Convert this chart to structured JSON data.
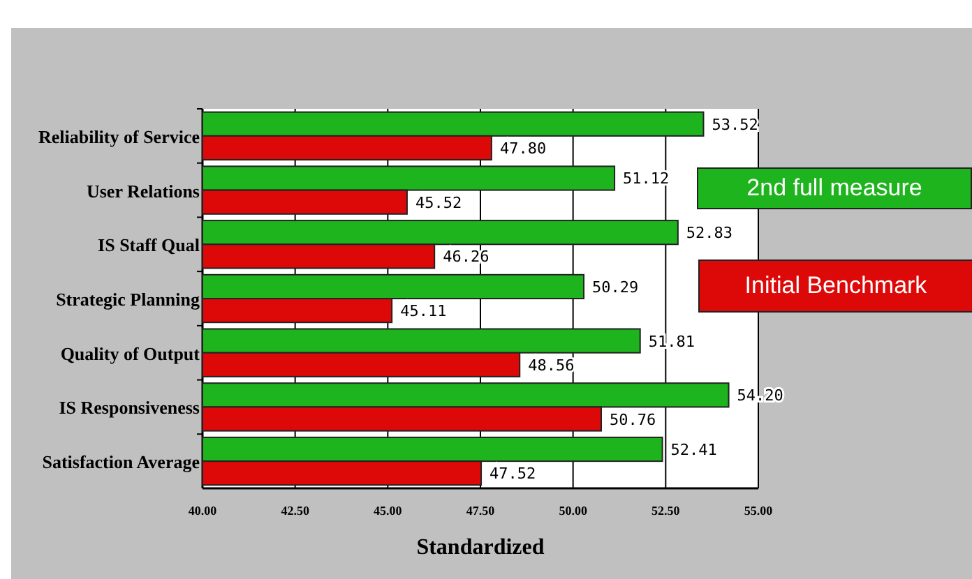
{
  "chart_data": {
    "type": "bar",
    "orientation": "horizontal",
    "xlabel": "Standardized",
    "categories": [
      "Reliability of Service",
      "User Relations",
      "IS Staff Qual",
      "Strategic Planning",
      "Quality of Output",
      "IS Responsiveness",
      "Satisfaction Average"
    ],
    "series": [
      {
        "name": "2nd full measure",
        "color": "#1eb41e",
        "values": [
          53.52,
          51.12,
          52.83,
          50.29,
          51.81,
          54.2,
          52.41
        ],
        "value_labels": [
          "53.52",
          "51.12",
          "52.83",
          "50.29",
          "51.81",
          "54.20",
          "52.41"
        ]
      },
      {
        "name": "Initial Benchmark",
        "color": "#dd0808",
        "values": [
          47.8,
          45.52,
          46.26,
          45.11,
          48.56,
          50.76,
          47.52
        ],
        "value_labels": [
          "47.80",
          "45.52",
          "46.26",
          "45.11",
          "48.56",
          "50.76",
          "47.52"
        ]
      }
    ],
    "xlim": [
      40,
      55
    ],
    "xticks": [
      {
        "value": 40,
        "label": "40.00"
      },
      {
        "value": 42.5,
        "label": "42.50"
      },
      {
        "value": 45,
        "label": "45.00"
      },
      {
        "value": 47.5,
        "label": "47.50"
      },
      {
        "value": 50,
        "label": "50.00"
      },
      {
        "value": 52.5,
        "label": "52.50"
      },
      {
        "value": 55,
        "label": "55.00"
      }
    ],
    "grid": "x",
    "legend": "right"
  }
}
